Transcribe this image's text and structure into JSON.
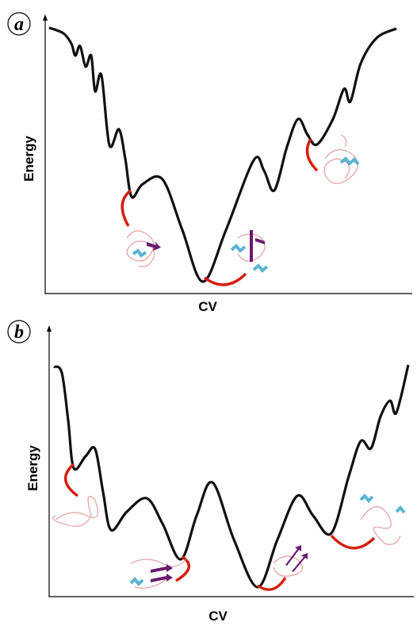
{
  "panels": [
    {
      "label": "a",
      "y_axis": "Energy",
      "x_axis": "CV"
    },
    {
      "label": "b",
      "y_axis": "Energy",
      "x_axis": "CV"
    }
  ]
}
